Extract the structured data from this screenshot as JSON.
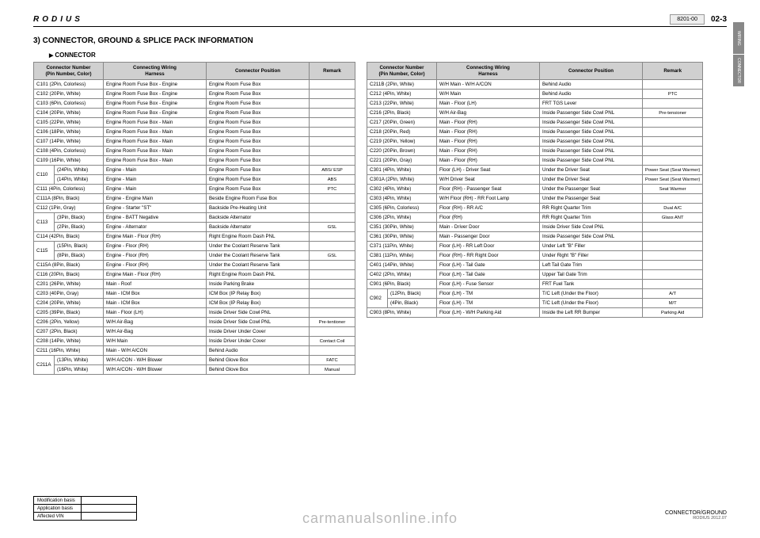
{
  "header": {
    "logo": "RODIUS",
    "code": "8201-00",
    "page_num": "02-3"
  },
  "side_tabs": [
    "WIRING",
    "CONNECTOR"
  ],
  "section_title": "3) CONNECTOR, GROUND & SPLICE PACK INFORMATION",
  "sub_title": "CONNECTOR",
  "columns": {
    "conn": "Connector Number\n(Pin Number, Color)",
    "harn": "Connecting Wiring\nHarness",
    "pos": "Connector Position",
    "rem": "Remark"
  },
  "left_table": [
    {
      "c": "C101 (2Pin, Colorless)",
      "h": "Engine Room Fuse Box - Engine",
      "p": "Engine Room Fuse Box",
      "r": ""
    },
    {
      "c": "C102 (20Pin, White)",
      "h": "Engine Room Fuse Box - Engine",
      "p": "Engine Room Fuse Box",
      "r": ""
    },
    {
      "c": "C103 (6Pin, Colorless)",
      "h": "Engine Room Fuse Box - Engine",
      "p": "Engine Room Fuse Box",
      "r": ""
    },
    {
      "c": "C104 (20Pin, White)",
      "h": "Engine Room Fuse Box - Engine",
      "p": "Engine Room Fuse Box",
      "r": ""
    },
    {
      "c": "C105 (22Pin, White)",
      "h": "Engine Room Fuse Box - Main",
      "p": "Engine Room Fuse Box",
      "r": ""
    },
    {
      "c": "C106 (18Pin, White)",
      "h": "Engine Room Fuse Box - Main",
      "p": "Engine Room Fuse Box",
      "r": ""
    },
    {
      "c": "C107 (14Pin, White)",
      "h": "Engine Room Fuse Box - Main",
      "p": "Engine Room Fuse Box",
      "r": ""
    },
    {
      "c": "C108 (4Pin, Colorless)",
      "h": "Engine Room Fuse Box - Main",
      "p": "Engine Room Fuse Box",
      "r": ""
    },
    {
      "c": "C109 (16Pin, White)",
      "h": "Engine Room Fuse Box - Main",
      "p": "Engine Room Fuse Box",
      "r": ""
    },
    {
      "group": "C110",
      "rows": [
        {
          "c": "(24Pin, White)",
          "h": "Engine - Main",
          "p": "Engine Room Fuse Box",
          "r": "ABS/ ESP"
        },
        {
          "c": "(14Pin, White)",
          "h": "Engine - Main",
          "p": "Engine Room Fuse Box",
          "r": "ABS"
        }
      ]
    },
    {
      "c": "C111 (4Pin, Colorless)",
      "h": "Engine - Main",
      "p": "Engine Room Fuse Box",
      "r": "PTC"
    },
    {
      "c": "C111A (8Pin, Black)",
      "h": "Engine - Engine Main",
      "p": "Beside Engine Room Fuse Box",
      "r": ""
    },
    {
      "c": "C112 (1Pin, Gray)",
      "h": "Engine - Starter \"ST\"",
      "p": "Backside Pre-Heating Unit",
      "r": ""
    },
    {
      "group": "C113",
      "rows": [
        {
          "c": "(3Pin, Black)",
          "h": "Engine - BATT Negative",
          "p": "Backside Alternator",
          "r": ""
        },
        {
          "c": "(2Pin, Black)",
          "h": "Engine - Alternator",
          "p": "Backside Alternator",
          "r": "GSL"
        }
      ]
    },
    {
      "c": "C114 (42Pin, Black)",
      "h": "Engine Main - Floor (RH)",
      "p": "Right Engine Room Dash PNL",
      "r": ""
    },
    {
      "group": "C115",
      "rows": [
        {
          "c": "(15Pin, Black)",
          "h": "Engine - Floor (RH)",
          "p": "Under the Coolant Reserve Tank",
          "r": ""
        },
        {
          "c": "(8Pin, Black)",
          "h": "Engine - Floor (RH)",
          "p": "Under the Coolant Reserve Tank",
          "r": "GSL"
        }
      ]
    },
    {
      "c": "C115A (8Pin, Black)",
      "h": "Engine - Floor (RH)",
      "p": "Under the Coolant Reserve Tank",
      "r": ""
    },
    {
      "c": "C116 (20Pin, Black)",
      "h": "Engine Main - Floor (RH)",
      "p": "Right Engine Room Dash PNL",
      "r": ""
    },
    {
      "c": "C201 (26Pin, White)",
      "h": "Main - Roof",
      "p": "Inside Parking Brake",
      "r": ""
    },
    {
      "c": "C203 (40Pin, Gray)",
      "h": "Main - ICM Box",
      "p": "ICM Box (IP Relay Box)",
      "r": ""
    },
    {
      "c": "C204 (20Pin, White)",
      "h": "Main - ICM Box",
      "p": "ICM Box (IP Relay Box)",
      "r": ""
    },
    {
      "c": "C205 (39Pin, Black)",
      "h": "Main - Floor (LH)",
      "p": "Inside Driver Side Cowl PNL",
      "r": ""
    },
    {
      "c": "C206 (2Pin, Yellow)",
      "h": "W/H Air-Bag",
      "p": "Inside Driver Side Cowl PNL",
      "r": "Pre-tentioner"
    },
    {
      "c": "C207 (2Pin, Black)",
      "h": "W/H Air-Bag",
      "p": "Inside Driver Under Cover",
      "r": ""
    },
    {
      "c": "C208 (14Pin, White)",
      "h": "W/H Main",
      "p": "Inside Driver Under Cover",
      "r": "Contact Coil"
    },
    {
      "c": "C211 (16Pin, White)",
      "h": "Main - W/H A/CON",
      "p": "Behind Audio",
      "r": ""
    },
    {
      "group": "C211A",
      "rows": [
        {
          "c": "(13Pin, White)",
          "h": "W/H A/CON - W/H Blower",
          "p": "Behind Glove Box",
          "r": "FATC"
        },
        {
          "c": "(16Pin, White)",
          "h": "W/H A/CON - W/H Blower",
          "p": "Behind Glove Box",
          "r": "Manual"
        }
      ]
    }
  ],
  "right_table": [
    {
      "c": "C211B (2Pin, White)",
      "h": "W/H Main - W/H A/CON",
      "p": "Behind Audio",
      "r": ""
    },
    {
      "c": "C212 (4Pin, White)",
      "h": "W/H Main",
      "p": "Behind Audio",
      "r": "PTC"
    },
    {
      "c": "C213 (22Pin, White)",
      "h": "Main - Floor (LH)",
      "p": "FRT TGS Lever",
      "r": ""
    },
    {
      "c": "C216 (2Pin, Black)",
      "h": "W/H Air-Bag",
      "p": "Inside Passenger Side Cowl PNL",
      "r": "Pre-tensioner"
    },
    {
      "c": "C217 (20Pin, Green)",
      "h": "Main - Floor (RH)",
      "p": "Inside Passenger Side Cowl PNL",
      "r": ""
    },
    {
      "c": "C218 (20Pin, Red)",
      "h": "Main - Floor (RH)",
      "p": "Inside Passenger Side Cowl PNL",
      "r": ""
    },
    {
      "c": "C219 (20Pin, Yellow)",
      "h": "Main - Floor (RH)",
      "p": "Inside Passenger Side Cowl PNL",
      "r": ""
    },
    {
      "c": "C220 (20Pin, Brown)",
      "h": "Main - Floor (RH)",
      "p": "Inside Passenger Side Cowl PNL",
      "r": ""
    },
    {
      "c": "C221 (20Pin, Gray)",
      "h": "Main - Floor (RH)",
      "p": "Inside Passenger Side Cowl PNL",
      "r": ""
    },
    {
      "c": "C301 (4Pin, White)",
      "h": "Floor (LH) - Driver Seat",
      "p": "Under the Driver Seat",
      "r": "Power Seat (Seat Warmer)"
    },
    {
      "c": "C301A (2Pin, White)",
      "h": "W/H Driver Seat",
      "p": "Under the Driver Seat",
      "r": "Power Seat (Seat Warmer)"
    },
    {
      "c": "C302 (4Pin, White)",
      "h": "Floor (RH) - Passenger Seat",
      "p": "Under the Passenger Seat",
      "r": "Seat Warmer"
    },
    {
      "c": "C303 (4Pin, White)",
      "h": "W/H Floor (RH) - RR Foot Lamp",
      "p": "Under the Passenger Seat",
      "r": ""
    },
    {
      "c": "C305 (6Pin, Colorless)",
      "h": "Floor (RH) - RR A/C",
      "p": "RR Right Quarter Trim",
      "r": "Dual A/C"
    },
    {
      "c": "C306 (2Pin, White)",
      "h": "Floor (RH)",
      "p": "RR Right Quarter Trim",
      "r": "Glass ANT"
    },
    {
      "c": "C351 (30Pin, White)",
      "h": "Main - Driver Door",
      "p": "Inside Driver Side Cowl PNL",
      "r": ""
    },
    {
      "c": "C361 (30Pin, White)",
      "h": "Main - Passenger Door",
      "p": "Inside Passenger Side Cowl PNL",
      "r": ""
    },
    {
      "c": "C371 (11Pin, White)",
      "h": "Floor (LH) - RR Left Door",
      "p": "Under Left \"B\" Filler",
      "r": ""
    },
    {
      "c": "C381 (11Pin, White)",
      "h": "Floor (RH) - RR Right Door",
      "p": "Under Right \"B\" Filler",
      "r": ""
    },
    {
      "c": "C401 (14Pin, White)",
      "h": "Floor (LH) - Tail Gate",
      "p": "Left Tail Gate Trim",
      "r": ""
    },
    {
      "c": "C402 (2Pin, White)",
      "h": "Floor (LH) - Tail Gate",
      "p": "Upper Tail Gate Trim",
      "r": ""
    },
    {
      "c": "C901 (6Pin, Black)",
      "h": "Floor (LH) - Fuse Sensor",
      "p": "FRT Fuel Tank",
      "r": ""
    },
    {
      "group": "C902",
      "rows": [
        {
          "c": "(12Pin, Black)",
          "h": "Floor (LH) - TM",
          "p": "T/C Left (Under the Floor)",
          "r": "A/T"
        },
        {
          "c": "(4Pin, Black)",
          "h": "Floor (LH) - TM",
          "p": "T/C Left (Under the Floor)",
          "r": "M/T"
        }
      ]
    },
    {
      "c": "C903 (8Pin, White)",
      "h": "Floor (LH) - W/H Parking Aid",
      "p": "Inside the Left RR Bumper",
      "r": "Parking Aid"
    }
  ],
  "footer_left": {
    "rows": [
      "Modification basis",
      "Application basis",
      "Affected VIN"
    ]
  },
  "footer_right": {
    "line1": "CONNECTOR/GROUND",
    "line2": "RODIUS 2012.07"
  },
  "watermark": "carmanualsonline.info"
}
